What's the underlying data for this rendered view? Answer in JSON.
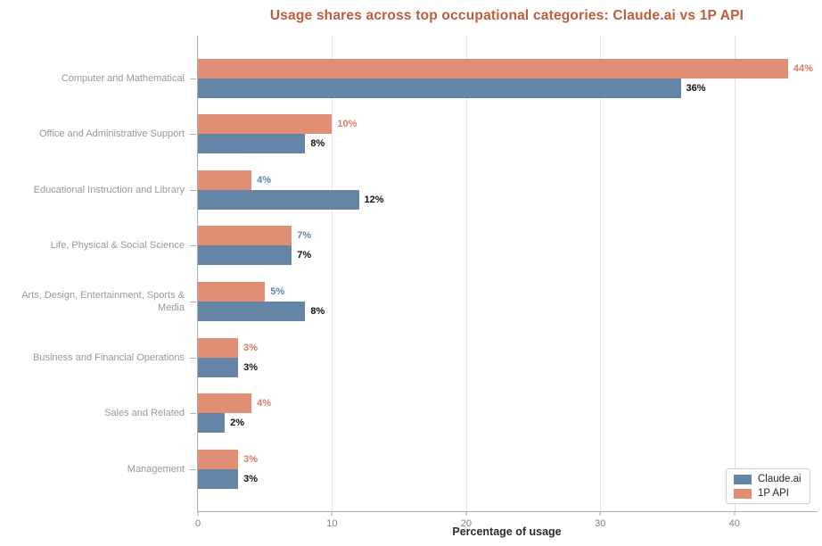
{
  "chart_data": {
    "type": "bar",
    "orientation": "horizontal",
    "title": "Usage shares across top occupational categories: Claude.ai vs 1P API",
    "title_color": "#C05B3F",
    "xlabel": "Percentage of usage",
    "xlim": [
      0,
      46.2
    ],
    "xticks": [
      0,
      10,
      20,
      30,
      40
    ],
    "grid": true,
    "background_color": "#ffffff",
    "categories": [
      "Computer and Mathematical",
      "Office and Administrative Support",
      "Educational Instruction and Library",
      "Life, Physical & Social Science",
      "Arts, Design, Entertainment, Sports & Media",
      "Business and Financial Operations",
      "Sales and Related",
      "Management"
    ],
    "series": [
      {
        "name": "1P API",
        "color": "#E18F74",
        "values": [
          44,
          10,
          4,
          7,
          5,
          3,
          4,
          3
        ],
        "value_labels": [
          "44%",
          "10%",
          "4%",
          "7%",
          "5%",
          "3%",
          "4%",
          "3%"
        ],
        "label_colors": [
          "#D97E65",
          "#D97E65",
          "#6586A7",
          "#6586A7",
          "#6586A7",
          "#D97E65",
          "#D97E65",
          "#D97E65"
        ]
      },
      {
        "name": "Claude.ai",
        "color": "#6585A7",
        "values": [
          36,
          8,
          12,
          7,
          8,
          3,
          2,
          3
        ],
        "value_labels": [
          "36%",
          "8%",
          "12%",
          "7%",
          "8%",
          "3%",
          "2%",
          "3%"
        ],
        "label_colors": [
          "#111111",
          "#111111",
          "#111111",
          "#111111",
          "#111111",
          "#111111",
          "#111111",
          "#111111"
        ]
      }
    ],
    "legend": {
      "position": "lower-right",
      "entries": [
        {
          "label": "Claude.ai",
          "color": "#6585A7"
        },
        {
          "label": "1P API",
          "color": "#E18F74"
        }
      ]
    }
  }
}
